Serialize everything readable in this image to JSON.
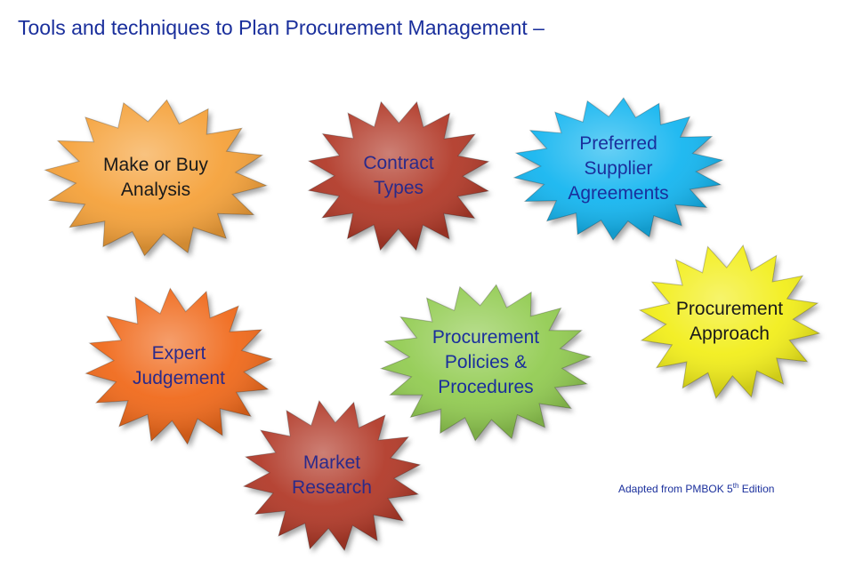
{
  "title": "Tools and techniques to Plan Procurement Management –",
  "stars": [
    {
      "lines": [
        "Make or Buy",
        "Analysis"
      ],
      "fill": "#f5a23a",
      "text_color": "#1a1a1a"
    },
    {
      "lines": [
        "Contract",
        "Types"
      ],
      "fill": "#b23b2c",
      "text_color": "#2a2a8a"
    },
    {
      "lines": [
        "Preferred",
        "Supplier",
        "Agreements"
      ],
      "fill": "#14b6f0",
      "text_color": "#1a2f9c"
    },
    {
      "lines": [
        "Procurement",
        "Approach"
      ],
      "fill": "#f2ee1a",
      "text_color": "#1a1a1a"
    },
    {
      "lines": [
        "Expert",
        "Judgement"
      ],
      "fill": "#f06a1a",
      "text_color": "#2a2a8a"
    },
    {
      "lines": [
        "Procurement",
        "Policies &",
        "Procedures"
      ],
      "fill": "#93cc52",
      "text_color": "#1a2f9c"
    },
    {
      "lines": [
        "Market",
        "Research"
      ],
      "fill": "#b23b2c",
      "text_color": "#2a2a8a"
    }
  ],
  "credit": {
    "prefix": "Adapted from PMBOK 5",
    "sup": "th",
    "suffix": " Edition"
  }
}
